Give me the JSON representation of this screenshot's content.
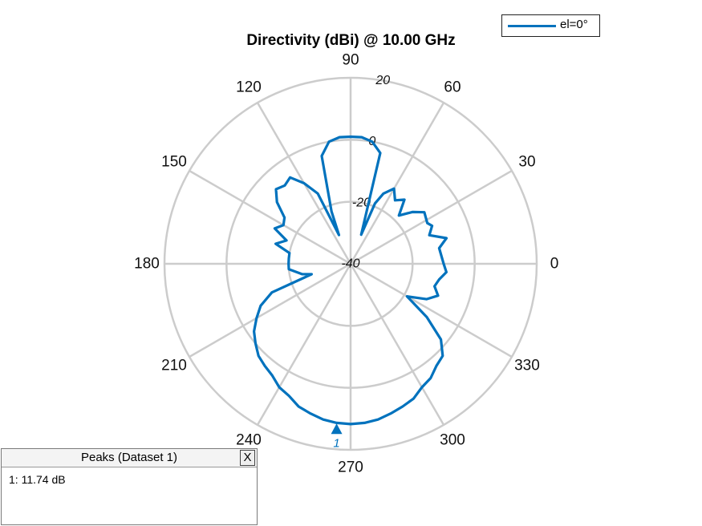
{
  "chart_data": {
    "type": "polar",
    "title": "Directivity (dBi) @ 10.00 GHz",
    "angle_unit": "degrees",
    "angle_ticks": [
      0,
      30,
      60,
      90,
      120,
      150,
      180,
      210,
      240,
      270,
      300,
      330
    ],
    "angle_tick_labels": [
      "0",
      "30",
      "60",
      "90",
      "120",
      "150",
      "180",
      "210",
      "240",
      "270",
      "300",
      "330"
    ],
    "r_ticks": [
      -40,
      -20,
      0,
      20
    ],
    "r_tick_labels": [
      "-40",
      "-20",
      "0",
      "20"
    ],
    "rlim": [
      -40,
      20
    ],
    "grid": true,
    "legend_placement": "top-right",
    "series": [
      {
        "name": "el=0°",
        "color": "#0072BD",
        "theta": [
          0,
          10,
          15,
          20,
          25,
          28,
          35,
          40,
          45,
          50,
          55,
          60,
          65,
          68,
          70,
          75,
          80,
          85,
          90,
          95,
          100,
          105,
          110,
          112,
          115,
          120,
          125,
          130,
          135,
          140,
          145,
          150,
          155,
          160,
          165,
          170,
          175,
          180,
          185,
          188,
          192,
          195,
          200,
          205,
          210,
          215,
          220,
          225,
          230,
          235,
          240,
          245,
          250,
          255,
          260,
          265,
          270,
          275,
          280,
          285,
          290,
          295,
          300,
          305,
          310,
          315,
          320,
          325,
          330,
          335,
          340,
          345,
          350,
          355,
          360
        ],
        "r": [
          -10,
          -11,
          -8,
          -13,
          -11,
          -12,
          -11,
          -14,
          -18,
          -13,
          -15,
          -12,
          -15,
          -19,
          -30,
          -3,
          0,
          1,
          1,
          1,
          0,
          -4,
          -22,
          -30,
          -15,
          -10,
          -6,
          -7,
          -6,
          -9,
          -14,
          -15,
          -13,
          -18,
          -15,
          -20,
          -20,
          -20,
          -20,
          -22,
          -24,
          -27,
          -13,
          -8,
          -5,
          -2,
          0,
          2,
          3,
          4,
          6,
          7,
          9,
          10,
          11,
          11.5,
          11.7,
          11.5,
          11,
          10,
          9,
          8,
          6,
          5,
          3,
          2,
          -2,
          -10,
          -19,
          -13,
          -10,
          -12,
          -11,
          -9,
          -10
        ]
      }
    ],
    "markers": [
      {
        "label": "1",
        "theta": 265,
        "r": 11.74
      }
    ]
  },
  "legend": {
    "label": "el=0°"
  },
  "peaks_panel": {
    "title": "Peaks (Dataset 1)",
    "close_label": "X",
    "entries": [
      "1: 11.74 dB"
    ]
  }
}
